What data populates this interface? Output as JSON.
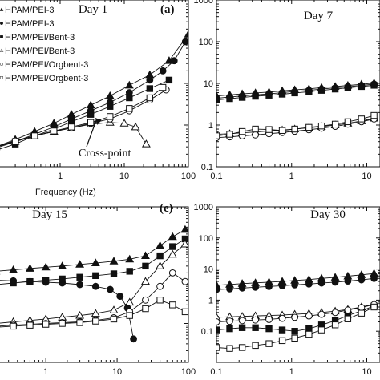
{
  "chart_data": [
    {
      "type": "scatter",
      "panel_label": "(a)",
      "title": "Day 1",
      "xlabel": "Frequency (Hz)",
      "xscale": "log",
      "yscale": "log",
      "xlim": [
        0.1,
        100
      ],
      "ylim": [
        0.1,
        1000
      ],
      "xticks": [
        {
          "v": 1,
          "label": "1"
        },
        {
          "v": 10,
          "label": "10"
        },
        {
          "v": 100,
          "label": "100"
        }
      ],
      "yticks": [],
      "legend": {
        "placement": "top-left",
        "entries": [
          "HPAM/PEI-3",
          "HPAM/PEI-3",
          "HPAM/PEI/Bent-3",
          "HPAM/PEI/Bent-3",
          "HPAM/PEI/Orgbent-3",
          "HPAM/PEI/Orgbent-3"
        ]
      },
      "annotation": {
        "text": "Cross-point",
        "at": [
          3.5,
          1.5
        ]
      },
      "series": [
        {
          "marker": "triangle-filled",
          "x": [
            0.1,
            0.2,
            0.4,
            0.8,
            1.5,
            3,
            6,
            12,
            25,
            50,
            100
          ],
          "y": [
            0.3,
            0.45,
            0.7,
            1.1,
            1.8,
            3,
            5,
            9,
            16,
            35,
            150
          ]
        },
        {
          "marker": "circle-filled",
          "x": [
            0.1,
            0.2,
            0.4,
            0.8,
            1.5,
            3,
            6,
            12,
            25,
            40,
            60,
            90
          ],
          "y": [
            0.3,
            0.4,
            0.6,
            0.9,
            1.4,
            2.2,
            3.5,
            6,
            12,
            20,
            35,
            100
          ]
        },
        {
          "marker": "square-filled",
          "x": [
            0.1,
            0.2,
            0.4,
            0.8,
            1.5,
            3,
            6,
            12,
            25,
            50
          ],
          "y": [
            0.25,
            0.35,
            0.55,
            0.8,
            1.2,
            1.8,
            2.8,
            4.5,
            7.5,
            12
          ]
        },
        {
          "marker": "triangle-open",
          "x": [
            0.1,
            0.2,
            0.4,
            0.8,
            1.5,
            3,
            6,
            10,
            15,
            22
          ],
          "y": [
            0.3,
            0.4,
            0.55,
            0.7,
            0.85,
            1.05,
            1.15,
            1.1,
            0.9,
            0.35
          ]
        },
        {
          "marker": "circle-open",
          "x": [
            0.1,
            0.2,
            0.4,
            0.8,
            1.5,
            3,
            6,
            12,
            25,
            45
          ],
          "y": [
            0.3,
            0.42,
            0.55,
            0.7,
            0.85,
            1.1,
            1.4,
            2.2,
            4,
            7
          ]
        },
        {
          "marker": "square-open",
          "x": [
            0.1,
            0.2,
            0.4,
            0.8,
            1.5,
            3,
            6,
            12,
            25,
            40
          ],
          "y": [
            0.28,
            0.4,
            0.55,
            0.72,
            0.9,
            1.15,
            1.6,
            2.5,
            4.5,
            8
          ]
        }
      ]
    },
    {
      "type": "scatter",
      "title": "Day 7",
      "xscale": "log",
      "yscale": "log",
      "xlim": [
        0.1,
        15
      ],
      "ylim": [
        0.1,
        1000
      ],
      "xticks": [
        {
          "v": 0.1,
          "label": "0.1"
        },
        {
          "v": 1,
          "label": "1"
        },
        {
          "v": 10,
          "label": "10"
        }
      ],
      "yticks": [
        {
          "v": 0.1,
          "label": "0.1"
        },
        {
          "v": 1,
          "label": "1"
        },
        {
          "v": 10,
          "label": "10"
        },
        {
          "v": 100,
          "label": "100"
        },
        {
          "v": 1000,
          "label": "1000"
        }
      ],
      "series": [
        {
          "marker": "triangle-filled",
          "x": [
            0.1,
            0.15,
            0.22,
            0.33,
            0.5,
            0.75,
            1.1,
            1.7,
            2.5,
            3.8,
            5.6,
            8.5,
            12.5
          ],
          "y": [
            5.0,
            5.3,
            5.6,
            5.9,
            6.2,
            6.6,
            7.0,
            7.4,
            7.9,
            8.4,
            8.9,
            9.5,
            10.2
          ]
        },
        {
          "marker": "circle-filled",
          "x": [
            0.1,
            0.15,
            0.22,
            0.33,
            0.5,
            0.75,
            1.1,
            1.7,
            2.5,
            3.8,
            5.6,
            8.5,
            12.5
          ],
          "y": [
            4.4,
            4.7,
            5.0,
            5.3,
            5.6,
            6.0,
            6.4,
            6.8,
            7.3,
            7.8,
            8.3,
            8.9,
            9.6
          ]
        },
        {
          "marker": "square-filled",
          "x": [
            0.1,
            0.15,
            0.22,
            0.33,
            0.5,
            0.75,
            1.1,
            1.7,
            2.5,
            3.8,
            5.6,
            8.5,
            12.5
          ],
          "y": [
            4.0,
            4.3,
            4.6,
            4.9,
            5.2,
            5.5,
            5.9,
            6.3,
            6.8,
            7.3,
            7.8,
            8.4,
            9.0
          ]
        },
        {
          "marker": "triangle-open",
          "x": [
            0.1,
            0.15,
            0.22,
            0.33,
            0.5,
            0.75,
            1.1,
            1.7,
            2.5,
            3.8,
            5.6,
            8.5,
            12.5
          ],
          "y": [
            0.6,
            0.62,
            0.65,
            0.68,
            0.72,
            0.76,
            0.8,
            0.86,
            0.92,
            1.0,
            1.1,
            1.25,
            1.45
          ]
        },
        {
          "marker": "circle-open",
          "x": [
            0.1,
            0.15,
            0.22,
            0.33,
            0.5,
            0.75,
            1.1,
            1.7,
            2.5,
            3.8,
            5.6,
            8.5,
            12.5
          ],
          "y": [
            0.5,
            0.52,
            0.55,
            0.58,
            0.62,
            0.66,
            0.71,
            0.77,
            0.84,
            0.93,
            1.05,
            1.2,
            1.4
          ]
        },
        {
          "marker": "square-open",
          "x": [
            0.1,
            0.15,
            0.22,
            0.33,
            0.5,
            0.75,
            1.1,
            1.7,
            2.5,
            3.8,
            5.6,
            8.5,
            12.5
          ],
          "y": [
            0.55,
            0.6,
            0.7,
            0.8,
            0.78,
            0.74,
            0.8,
            0.88,
            0.95,
            1.05,
            1.2,
            1.4,
            1.7
          ]
        }
      ]
    },
    {
      "type": "scatter",
      "panel_label": "(c)",
      "title": "Day 15",
      "xscale": "log",
      "yscale": "log",
      "xlim": [
        0.2,
        100
      ],
      "ylim": [
        0.1,
        1000
      ],
      "xticks": [
        {
          "v": 1,
          "label": "1"
        },
        {
          "v": 10,
          "label": "10"
        },
        {
          "v": 100,
          "label": "100"
        }
      ],
      "yticks": [],
      "series": [
        {
          "marker": "triangle-filled",
          "x": [
            0.2,
            0.35,
            0.6,
            1,
            1.7,
            3,
            5,
            9,
            15,
            25,
            40,
            60,
            90
          ],
          "y": [
            22,
            24,
            26,
            28,
            30,
            33,
            36,
            40,
            45,
            55,
            100,
            170,
            260
          ]
        },
        {
          "marker": "circle-filled",
          "x": [
            0.2,
            0.35,
            0.6,
            1,
            1.7,
            3,
            5,
            8,
            11,
            14,
            17
          ],
          "y": [
            13,
            12.5,
            12,
            11.5,
            11,
            10,
            9,
            7.5,
            5,
            2.5,
            0.4
          ]
        },
        {
          "marker": "square-filled",
          "x": [
            0.2,
            0.35,
            0.6,
            1,
            1.7,
            3,
            5,
            9,
            15,
            25,
            40,
            60,
            90
          ],
          "y": [
            10,
            11,
            12,
            13,
            14,
            15.5,
            17,
            19,
            22,
            30,
            55,
            95,
            150
          ]
        },
        {
          "marker": "triangle-open",
          "x": [
            0.2,
            0.35,
            0.6,
            1,
            1.7,
            3,
            5,
            9,
            15,
            25,
            40,
            60,
            90
          ],
          "y": [
            1.0,
            1.1,
            1.2,
            1.3,
            1.45,
            1.6,
            1.8,
            2.2,
            3.5,
            12,
            30,
            60,
            110
          ]
        },
        {
          "marker": "circle-open",
          "x": [
            0.2,
            0.35,
            0.6,
            1,
            1.7,
            3,
            5,
            9,
            15,
            25,
            40,
            60,
            90
          ],
          "y": [
            0.85,
            0.9,
            0.95,
            1.0,
            1.05,
            1.1,
            1.2,
            1.4,
            2,
            4,
            9,
            20,
            12
          ]
        },
        {
          "marker": "square-open",
          "x": [
            0.2,
            0.35,
            0.6,
            1,
            1.7,
            3,
            5,
            9,
            15,
            25,
            40,
            60,
            90
          ],
          "y": [
            0.8,
            0.85,
            0.9,
            0.95,
            1.0,
            1.05,
            1.15,
            1.3,
            1.6,
            2.4,
            4,
            3,
            2
          ]
        }
      ]
    },
    {
      "type": "scatter",
      "title": "Day 30",
      "xscale": "log",
      "yscale": "log",
      "xlim": [
        0.1,
        15
      ],
      "ylim": [
        0.01,
        1000
      ],
      "xticks": [
        {
          "v": 0.1,
          "label": "0.1"
        },
        {
          "v": 1,
          "label": "1"
        },
        {
          "v": 10,
          "label": "10"
        }
      ],
      "yticks": [
        {
          "v": 0.1,
          "label": "0.1"
        },
        {
          "v": 1,
          "label": "1"
        },
        {
          "v": 10,
          "label": "10"
        },
        {
          "v": 100,
          "label": "100"
        },
        {
          "v": 1000,
          "label": "1000"
        }
      ],
      "series": [
        {
          "marker": "triangle-filled",
          "x": [
            0.1,
            0.15,
            0.22,
            0.33,
            0.5,
            0.75,
            1.1,
            1.7,
            2.5,
            3.8,
            5.6,
            8.5,
            12.5
          ],
          "y": [
            3.0,
            3.2,
            3.4,
            3.6,
            3.8,
            4.0,
            4.3,
            4.6,
            5.0,
            5.4,
            5.9,
            6.5,
            7.2
          ]
        },
        {
          "marker": "circle-filled",
          "x": [
            0.1,
            0.15,
            0.22,
            0.33,
            0.5,
            0.75,
            1.1,
            1.7,
            2.5,
            3.8,
            5.6,
            8.5,
            12.5
          ],
          "y": [
            2.2,
            2.3,
            2.45,
            2.6,
            2.75,
            2.9,
            3.1,
            3.3,
            3.55,
            3.8,
            4.1,
            4.5,
            5.0
          ]
        },
        {
          "marker": "square-filled",
          "x": [
            0.1,
            0.15,
            0.22,
            0.33,
            0.5,
            0.75,
            1.1,
            1.7,
            2.5,
            3.8,
            5.6,
            8.5,
            12.5
          ],
          "y": [
            0.11,
            0.12,
            0.13,
            0.13,
            0.12,
            0.11,
            0.1,
            0.12,
            0.16,
            0.22,
            0.32,
            0.45,
            0.65
          ]
        },
        {
          "marker": "triangle-open",
          "x": [
            0.1,
            0.15,
            0.22,
            0.33,
            0.5,
            0.75,
            1.1,
            1.7,
            2.5,
            3.8,
            5.6,
            8.5,
            12.5
          ],
          "y": [
            0.28,
            0.29,
            0.3,
            0.31,
            0.32,
            0.33,
            0.35,
            0.37,
            0.4,
            0.44,
            0.5,
            0.6,
            0.75
          ]
        },
        {
          "marker": "circle-open",
          "x": [
            0.1,
            0.15,
            0.22,
            0.33,
            0.5,
            0.75,
            1.1,
            1.7,
            2.5,
            3.8,
            5.6,
            8.5,
            12.5
          ],
          "y": [
            0.2,
            0.21,
            0.22,
            0.23,
            0.24,
            0.26,
            0.28,
            0.31,
            0.35,
            0.4,
            0.48,
            0.58,
            0.72
          ]
        },
        {
          "marker": "square-open",
          "x": [
            0.1,
            0.15,
            0.22,
            0.33,
            0.5,
            0.75,
            1.1,
            1.7,
            2.5,
            3.8,
            5.6,
            8.5,
            12.5
          ],
          "y": [
            0.03,
            0.028,
            0.03,
            0.035,
            0.04,
            0.05,
            0.06,
            0.08,
            0.11,
            0.16,
            0.25,
            0.38,
            0.6
          ]
        }
      ]
    }
  ]
}
